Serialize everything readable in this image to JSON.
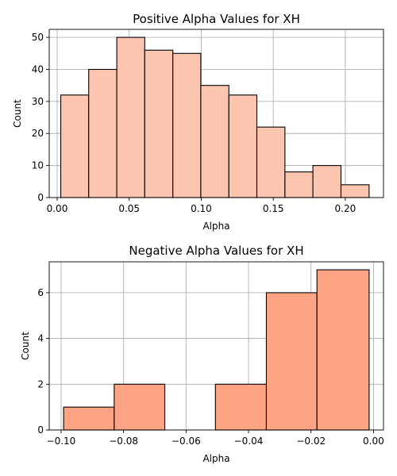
{
  "chart_data": [
    {
      "type": "bar",
      "title": "Positive Alpha Values for XH",
      "xlabel": "Alpha",
      "ylabel": "Count",
      "xlim": [
        -0.0055,
        0.2265
      ],
      "ylim": [
        0,
        52.5
      ],
      "xticks": [
        0.0,
        0.05,
        0.1,
        0.15,
        0.2
      ],
      "xtick_labels": [
        "0.00",
        "0.05",
        "0.10",
        "0.15",
        "0.20"
      ],
      "yticks": [
        0,
        10,
        20,
        30,
        40,
        50
      ],
      "ytick_labels": [
        "0",
        "10",
        "20",
        "30",
        "40",
        "50"
      ],
      "grid": true,
      "bar_color": "#fcc5b0",
      "bins": [
        {
          "x0": 0.0025,
          "x1": 0.0219,
          "value": 32
        },
        {
          "x0": 0.0219,
          "x1": 0.0414,
          "value": 40
        },
        {
          "x0": 0.0414,
          "x1": 0.0608,
          "value": 50
        },
        {
          "x0": 0.0608,
          "x1": 0.0803,
          "value": 46
        },
        {
          "x0": 0.0803,
          "x1": 0.0997,
          "value": 45
        },
        {
          "x0": 0.0997,
          "x1": 0.1192,
          "value": 35
        },
        {
          "x0": 0.1192,
          "x1": 0.1386,
          "value": 32
        },
        {
          "x0": 0.1386,
          "x1": 0.1581,
          "value": 22
        },
        {
          "x0": 0.1581,
          "x1": 0.1775,
          "value": 8
        },
        {
          "x0": 0.1775,
          "x1": 0.197,
          "value": 10
        },
        {
          "x0": 0.197,
          "x1": 0.2165,
          "value": 4
        }
      ]
    },
    {
      "type": "bar",
      "title": "Negative Alpha Values for XH",
      "xlabel": "Alpha",
      "ylabel": "Count",
      "xlim": [
        -0.1038,
        0.0032
      ],
      "ylim": [
        0,
        7.35
      ],
      "xticks": [
        -0.1,
        -0.08,
        -0.06,
        -0.04,
        -0.02,
        0.0
      ],
      "xtick_labels": [
        "−0.10",
        "−0.08",
        "−0.06",
        "−0.04",
        "−0.02",
        "0.00"
      ],
      "yticks": [
        0,
        2,
        4,
        6
      ],
      "ytick_labels": [
        "0",
        "2",
        "4",
        "6"
      ],
      "grid": true,
      "bar_color": "#fca483",
      "bins": [
        {
          "x0": -0.0992,
          "x1": -0.083,
          "value": 1
        },
        {
          "x0": -0.083,
          "x1": -0.0668,
          "value": 2
        },
        {
          "x0": -0.0668,
          "x1": -0.0506,
          "value": 0
        },
        {
          "x0": -0.0506,
          "x1": -0.0343,
          "value": 2
        },
        {
          "x0": -0.0343,
          "x1": -0.0181,
          "value": 6
        },
        {
          "x0": -0.0181,
          "x1": -0.0014,
          "value": 7
        }
      ]
    }
  ]
}
